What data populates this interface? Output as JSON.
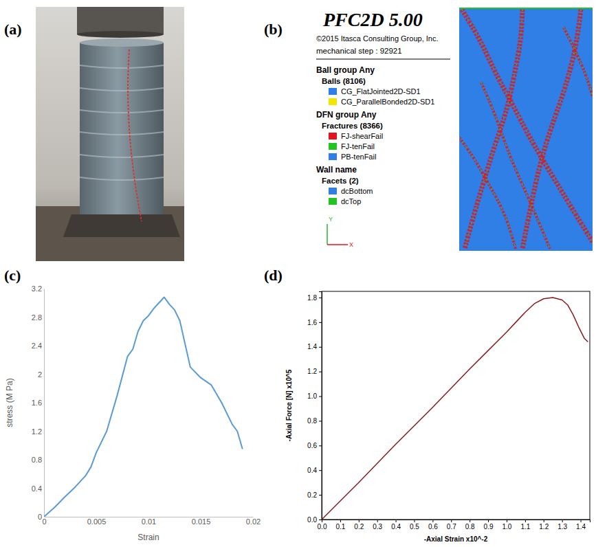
{
  "panel_a": {
    "label": "(a)"
  },
  "panel_b": {
    "label": "(b)",
    "title": "PFC2D 5.00",
    "copyright": "©2015 Itasca Consulting Group, Inc.",
    "step": "mechanical step : 92921",
    "groups": [
      {
        "heading": "Ball group Any",
        "subheading": "Balls (8106)",
        "items": [
          {
            "label": "CG_FlatJointed2D-SD1",
            "color": "#2f7fe6"
          },
          {
            "label": "CG_ParallelBonded2D-SD1",
            "color": "#f2e600"
          }
        ]
      },
      {
        "heading": "DFN group Any",
        "subheading": "Fractures (8366)",
        "items": [
          {
            "label": "FJ-shearFail",
            "color": "#e3141c"
          },
          {
            "label": "FJ-tenFail",
            "color": "#22c322"
          },
          {
            "label": "PB-tenFail",
            "color": "#2f7fe6"
          }
        ]
      },
      {
        "heading": "Wall name",
        "subheading": "Facets (2)",
        "items": [
          {
            "label": "dcBottom",
            "color": "#2f7fe6"
          },
          {
            "label": "dcTop",
            "color": "#22c322"
          }
        ]
      }
    ],
    "axes": [
      "Y",
      "X"
    ]
  },
  "chart_data": [
    {
      "type": "line",
      "panel_label": "(c)",
      "x_label": "Strain",
      "y_label": "stress (M Pa)",
      "color": "#5b9bd5",
      "x": [
        0,
        0.001,
        0.002,
        0.003,
        0.004,
        0.0045,
        0.005,
        0.006,
        0.007,
        0.008,
        0.0085,
        0.009,
        0.0095,
        0.01,
        0.0105,
        0.0115,
        0.012,
        0.0125,
        0.013,
        0.014,
        0.015,
        0.016,
        0.017,
        0.018,
        0.0185,
        0.019
      ],
      "values": [
        0,
        0.13,
        0.28,
        0.42,
        0.58,
        0.7,
        0.9,
        1.2,
        1.7,
        2.25,
        2.35,
        2.6,
        2.75,
        2.82,
        2.92,
        3.08,
        2.98,
        2.9,
        2.75,
        2.1,
        1.95,
        1.85,
        1.6,
        1.3,
        1.2,
        0.95
      ],
      "xlim": [
        0,
        0.02
      ],
      "xticks": [
        0,
        0.005,
        0.01,
        0.015,
        0.02
      ],
      "ylim": [
        0,
        3.2
      ],
      "yticks": [
        0,
        0.4,
        0.8,
        1.2,
        1.6,
        2,
        2.4,
        2.8,
        3.2
      ],
      "grid": false
    },
    {
      "type": "line",
      "panel_label": "(d)",
      "x_label": "-Axial Strain x10^-2",
      "y_label": "-Axial Force [N] x10^5",
      "color": "#8b1a1a",
      "x": [
        0,
        0.2,
        0.4,
        0.6,
        0.8,
        0.9,
        1.0,
        1.05,
        1.1,
        1.15,
        1.2,
        1.25,
        1.3,
        1.33,
        1.36,
        1.39,
        1.42,
        1.44
      ],
      "values": [
        0,
        0.3,
        0.61,
        0.91,
        1.22,
        1.37,
        1.52,
        1.6,
        1.68,
        1.75,
        1.79,
        1.8,
        1.78,
        1.74,
        1.66,
        1.56,
        1.47,
        1.44
      ],
      "xlim": [
        0,
        1.45
      ],
      "xticks": [
        {
          "value": 0,
          "label": "0.0"
        },
        0.1,
        0.2,
        0.3,
        0.4,
        0.5,
        0.6,
        0.7,
        0.8,
        0.9,
        {
          "value": 1,
          "label": "1.0"
        },
        1.1,
        1.2,
        1.3,
        1.4
      ],
      "ylim": [
        0,
        1.85
      ],
      "yticks": [
        {
          "value": 0,
          "label": "0.0"
        },
        0.2,
        0.4,
        0.6,
        0.8,
        {
          "value": 1,
          "label": "1.0"
        },
        1.2,
        1.4,
        1.6,
        1.8
      ],
      "grid": false
    }
  ]
}
